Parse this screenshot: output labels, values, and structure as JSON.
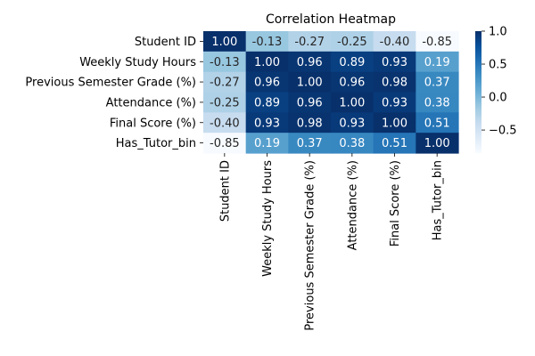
{
  "chart_data": {
    "type": "heatmap",
    "title": "Correlation Heatmap",
    "rows": [
      "Student ID",
      "Weekly Study Hours",
      "Previous Semester Grade (%)",
      "Attendance (%)",
      "Final Score (%)",
      "Has_Tutor_bin"
    ],
    "columns": [
      "Student ID",
      "Weekly Study Hours",
      "Previous Semester Grade (%)",
      "Attendance (%)",
      "Final Score (%)",
      "Has_Tutor_bin"
    ],
    "values": [
      [
        1.0,
        -0.13,
        -0.27,
        -0.25,
        -0.4,
        -0.85
      ],
      [
        -0.13,
        1.0,
        0.96,
        0.89,
        0.93,
        0.19
      ],
      [
        -0.27,
        0.96,
        1.0,
        0.96,
        0.98,
        0.37
      ],
      [
        -0.25,
        0.89,
        0.96,
        1.0,
        0.93,
        0.38
      ],
      [
        -0.4,
        0.93,
        0.98,
        0.93,
        1.0,
        0.51
      ],
      [
        -0.85,
        0.19,
        0.37,
        0.38,
        0.51,
        1.0
      ]
    ],
    "annotation_format": "2 decimals",
    "colormap": "Blues",
    "colormap_low": "#f7fbff",
    "colormap_high": "#08306b",
    "colorbar": {
      "range": [
        -0.85,
        1.0
      ],
      "ticks": [
        1.0,
        0.5,
        0.0,
        -0.5
      ],
      "tick_labels": [
        "1.0",
        "0.5",
        "0.0",
        "−0.5"
      ]
    },
    "text_color_dark": "#262626",
    "text_color_light": "#ffffff",
    "grid": false
  }
}
